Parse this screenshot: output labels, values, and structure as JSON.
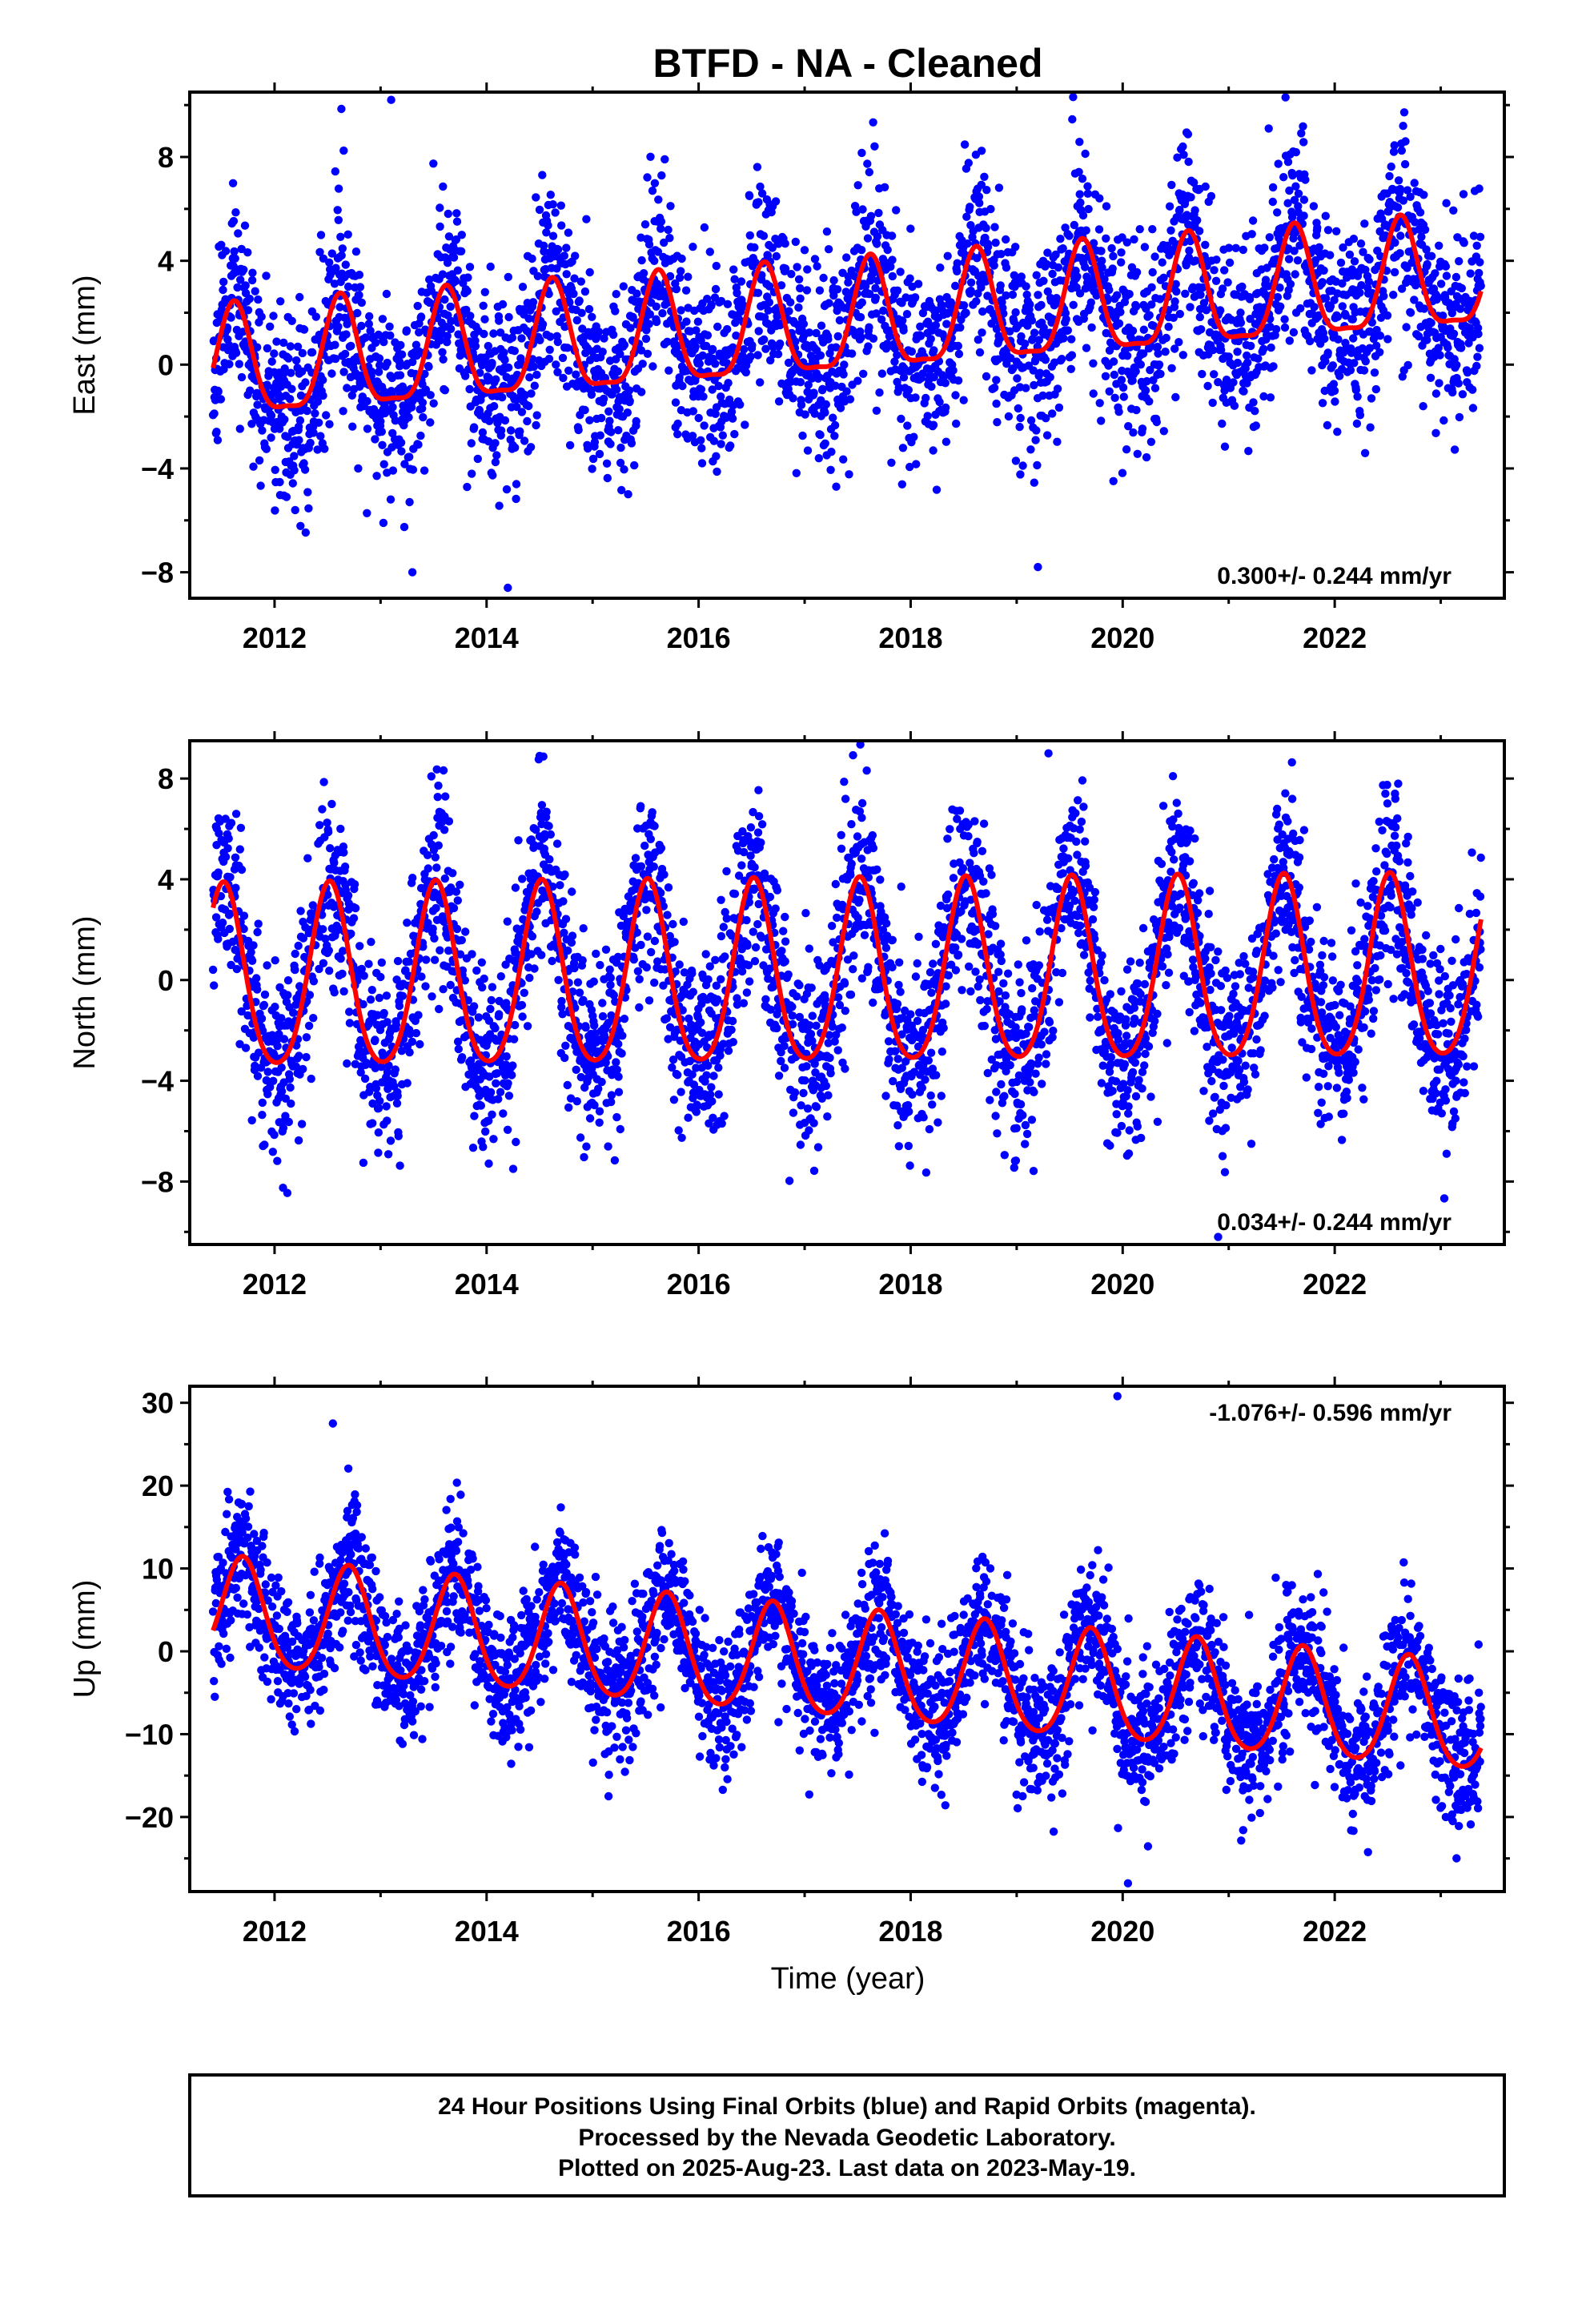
{
  "title": "BTFD  - NA - Cleaned",
  "xlabel": "Time (year)",
  "colors": {
    "points": "#0000ff",
    "model": "#ff0000",
    "frame": "#000000"
  },
  "chart_data": [
    {
      "type": "scatter",
      "name": "east",
      "ylabel": "East (mm)",
      "xlim": [
        2011.2,
        2023.6
      ],
      "ylim": [
        -9,
        10.5
      ],
      "xticks": [
        2012,
        2014,
        2016,
        2018,
        2020,
        2022
      ],
      "yticks": [
        -8,
        -4,
        0,
        4,
        8
      ],
      "rate_text": "0.300+/- 0.244 mm/yr",
      "rate_position": "bottom-right",
      "model": {
        "trend_start": -0.3,
        "trend_per_year": 0.3,
        "annual_amplitude": 2.1,
        "annual_peak_phase": 0.62,
        "semiannual_amplitude": 0.6
      },
      "scatter_sd": 1.9,
      "seed": 11,
      "outliers": [
        [
          2013.1,
          10.2
        ],
        [
          2014.2,
          -8.6
        ],
        [
          2019.2,
          -7.8
        ],
        [
          2013.3,
          -8.0
        ]
      ]
    },
    {
      "type": "scatter",
      "name": "north",
      "ylabel": "North (mm)",
      "xlim": [
        2011.2,
        2023.6
      ],
      "ylim": [
        -10.5,
        9.5
      ],
      "xticks": [
        2012,
        2014,
        2016,
        2018,
        2020,
        2022
      ],
      "yticks": [
        -8,
        -4,
        0,
        4,
        8
      ],
      "rate_text": "0.034+/- 0.244 mm/yr",
      "rate_position": "bottom-right",
      "model": {
        "trend_start": -0.2,
        "trend_per_year": 0.034,
        "annual_amplitude": 3.6,
        "annual_peak_phase": 0.52,
        "semiannual_amplitude": 0.5
      },
      "scatter_sd": 1.9,
      "seed": 23,
      "outliers": [
        [
          2020.9,
          -10.2
        ],
        [
          2019.3,
          9.0
        ],
        [
          2014.5,
          8.9
        ]
      ]
    },
    {
      "type": "scatter",
      "name": "up",
      "ylabel": "Up (mm)",
      "xlim": [
        2011.2,
        2023.6
      ],
      "ylim": [
        -29,
        32
      ],
      "xticks": [
        2012,
        2014,
        2016,
        2018,
        2020,
        2022
      ],
      "yticks": [
        -20,
        -10,
        0,
        10,
        20,
        30
      ],
      "rate_text": "-1.076+/- 0.596 mm/yr",
      "rate_position": "top-right",
      "model": {
        "trend_start": 4.5,
        "trend_per_year": -1.076,
        "annual_amplitude": 6.5,
        "annual_peak_phase": 0.7,
        "semiannual_amplitude": 0.8
      },
      "scatter_sd": 4.2,
      "seed": 37,
      "outliers": [
        [
          2019.95,
          30.8
        ],
        [
          2012.55,
          27.5
        ],
        [
          2015.15,
          -17.5
        ],
        [
          2020.05,
          -28.0
        ]
      ]
    }
  ],
  "footer": {
    "line1": "24 Hour Positions Using Final Orbits (blue) and Rapid Orbits (magenta).",
    "line2": "Processed by the Nevada Geodetic Laboratory.",
    "line3": "Plotted on 2025-Aug-23. Last data on 2023-May-19."
  }
}
